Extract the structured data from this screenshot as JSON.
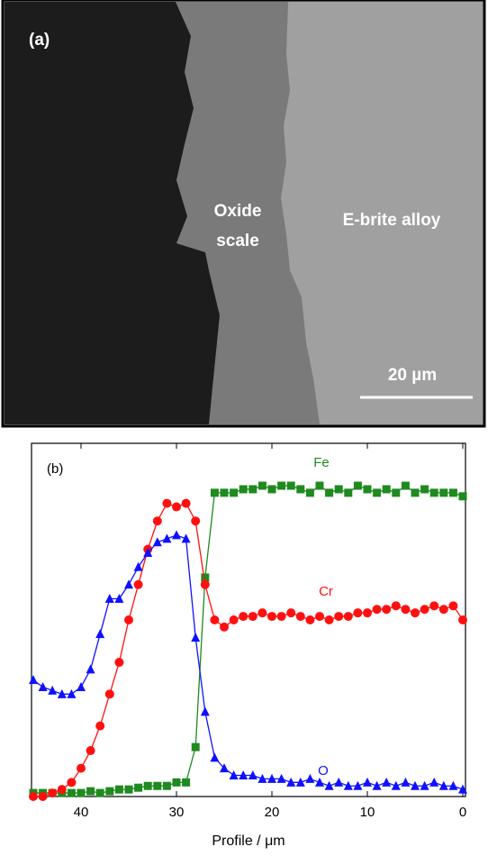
{
  "panel_a": {
    "label": "(a)",
    "oxide_label": [
      "Oxide",
      "scale"
    ],
    "alloy_label": "E-brite alloy",
    "scale_bar": "20 µm"
  },
  "chart_data": {
    "type": "line",
    "panel_label": "(b)",
    "x_label": "Profile / μm",
    "xlim": [
      45,
      0
    ],
    "xticks": [
      40,
      30,
      20,
      10,
      0
    ],
    "ylim": [
      0,
      100
    ],
    "x": [
      45,
      44,
      43,
      42,
      41,
      40,
      39,
      38,
      37,
      36,
      35,
      34,
      33,
      32,
      31,
      30,
      29,
      28,
      27,
      26,
      25,
      24,
      23,
      22,
      21,
      20,
      19,
      18,
      17,
      16,
      15,
      14,
      13,
      12,
      11,
      10,
      9,
      8,
      7,
      6,
      5,
      4,
      3,
      2,
      1,
      0
    ],
    "series": [
      {
        "name": "Fe",
        "color": "#1f8a1f",
        "marker": "square",
        "values": [
          1,
          1,
          1,
          1,
          1,
          1,
          1.5,
          1,
          1.5,
          2,
          2,
          2.5,
          3,
          3,
          3,
          4,
          4,
          14,
          62,
          86,
          86,
          86,
          87,
          87,
          88,
          87,
          88,
          88,
          87,
          86,
          88,
          86,
          87,
          86,
          88,
          87,
          86,
          87,
          86,
          88,
          86,
          87,
          86,
          86,
          86,
          85
        ]
      },
      {
        "name": "Cr",
        "color": "#ff1010",
        "marker": "circle",
        "values": [
          0,
          0,
          1,
          2,
          4,
          8,
          13,
          20,
          29,
          38,
          50,
          60,
          70,
          78,
          83,
          82,
          83,
          78,
          60,
          50,
          48,
          50,
          51,
          51,
          52,
          51,
          51,
          52,
          51,
          50,
          51,
          50,
          51,
          51,
          52,
          52,
          53,
          53,
          54,
          53,
          52,
          53,
          54,
          53,
          54,
          50
        ]
      },
      {
        "name": "O",
        "color": "#1010ff",
        "marker": "triangle",
        "values": [
          33,
          31,
          30,
          29,
          29,
          31,
          36,
          46,
          56,
          56,
          60,
          65,
          69,
          72,
          73,
          74,
          73,
          45,
          24,
          11,
          8,
          6,
          6,
          6,
          5,
          5,
          5,
          4,
          4,
          5,
          4,
          3,
          4,
          3,
          3,
          4,
          3,
          4,
          3,
          4,
          3,
          3,
          4,
          3,
          3,
          2
        ]
      }
    ]
  }
}
